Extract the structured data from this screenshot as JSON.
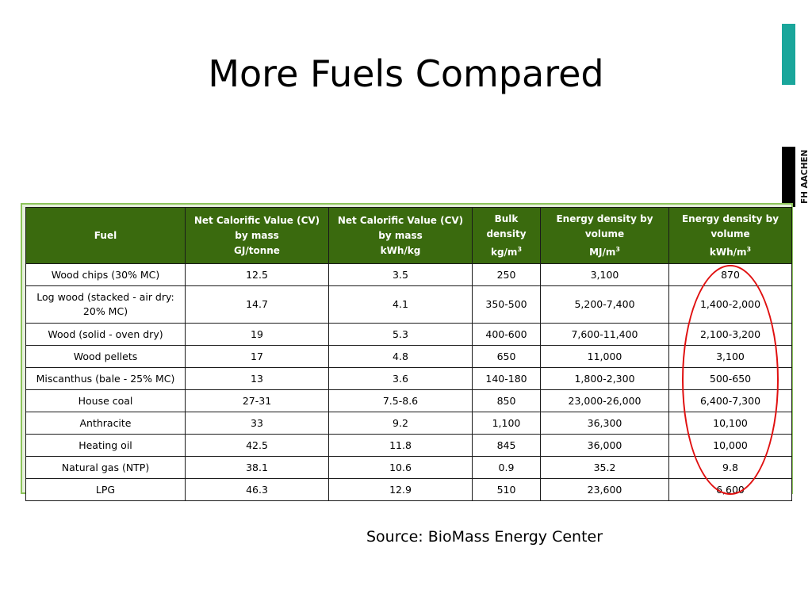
{
  "slide": {
    "title": "More Fuels Compared",
    "source": "Source: BioMass Energy Center",
    "logo_text": "FH AACHEN",
    "accent_color": "#1aa69b",
    "highlight_color": "#e01010"
  },
  "table": {
    "headers": [
      {
        "lines": [
          "Fuel"
        ]
      },
      {
        "lines": [
          "Net Calorific Value (CV)",
          "by mass",
          "GJ/tonne"
        ]
      },
      {
        "lines": [
          "Net Calorific Value (CV)",
          "by mass",
          "kWh/kg"
        ]
      },
      {
        "lines": [
          "Bulk",
          "density",
          "kg/m3"
        ]
      },
      {
        "lines": [
          "Energy density by",
          "volume",
          "MJ/m3"
        ]
      },
      {
        "lines": [
          "Energy density by",
          "volume",
          "kWh/m3"
        ]
      }
    ],
    "rows": [
      [
        "Wood chips (30% MC)",
        "12.5",
        "3.5",
        "250",
        "3,100",
        "870"
      ],
      [
        "Log wood (stacked - air dry: 20% MC)",
        "14.7",
        "4.1",
        "350-500",
        "5,200-7,400",
        "1,400-2,000"
      ],
      [
        "Wood (solid - oven dry)",
        "19",
        "5.3",
        "400-600",
        "7,600-11,400",
        "2,100-3,200"
      ],
      [
        "Wood pellets",
        "17",
        "4.8",
        "650",
        "11,000",
        "3,100"
      ],
      [
        "Miscanthus (bale - 25% MC)",
        "13",
        "3.6",
        "140-180",
        "1,800-2,300",
        "500-650"
      ],
      [
        "House coal",
        "27-31",
        "7.5-8.6",
        "850",
        "23,000-26,000",
        "6,400-7,300"
      ],
      [
        "Anthracite",
        "33",
        "9.2",
        "1,100",
        "36,300",
        "10,100"
      ],
      [
        "Heating oil",
        "42.5",
        "11.8",
        "845",
        "36,000",
        "10,000"
      ],
      [
        "Natural gas (NTP)",
        "38.1",
        "10.6",
        "0.9",
        "35.2",
        "9.8"
      ],
      [
        "LPG",
        "46.3",
        "12.9",
        "510",
        "23,600",
        "6,600"
      ]
    ]
  }
}
